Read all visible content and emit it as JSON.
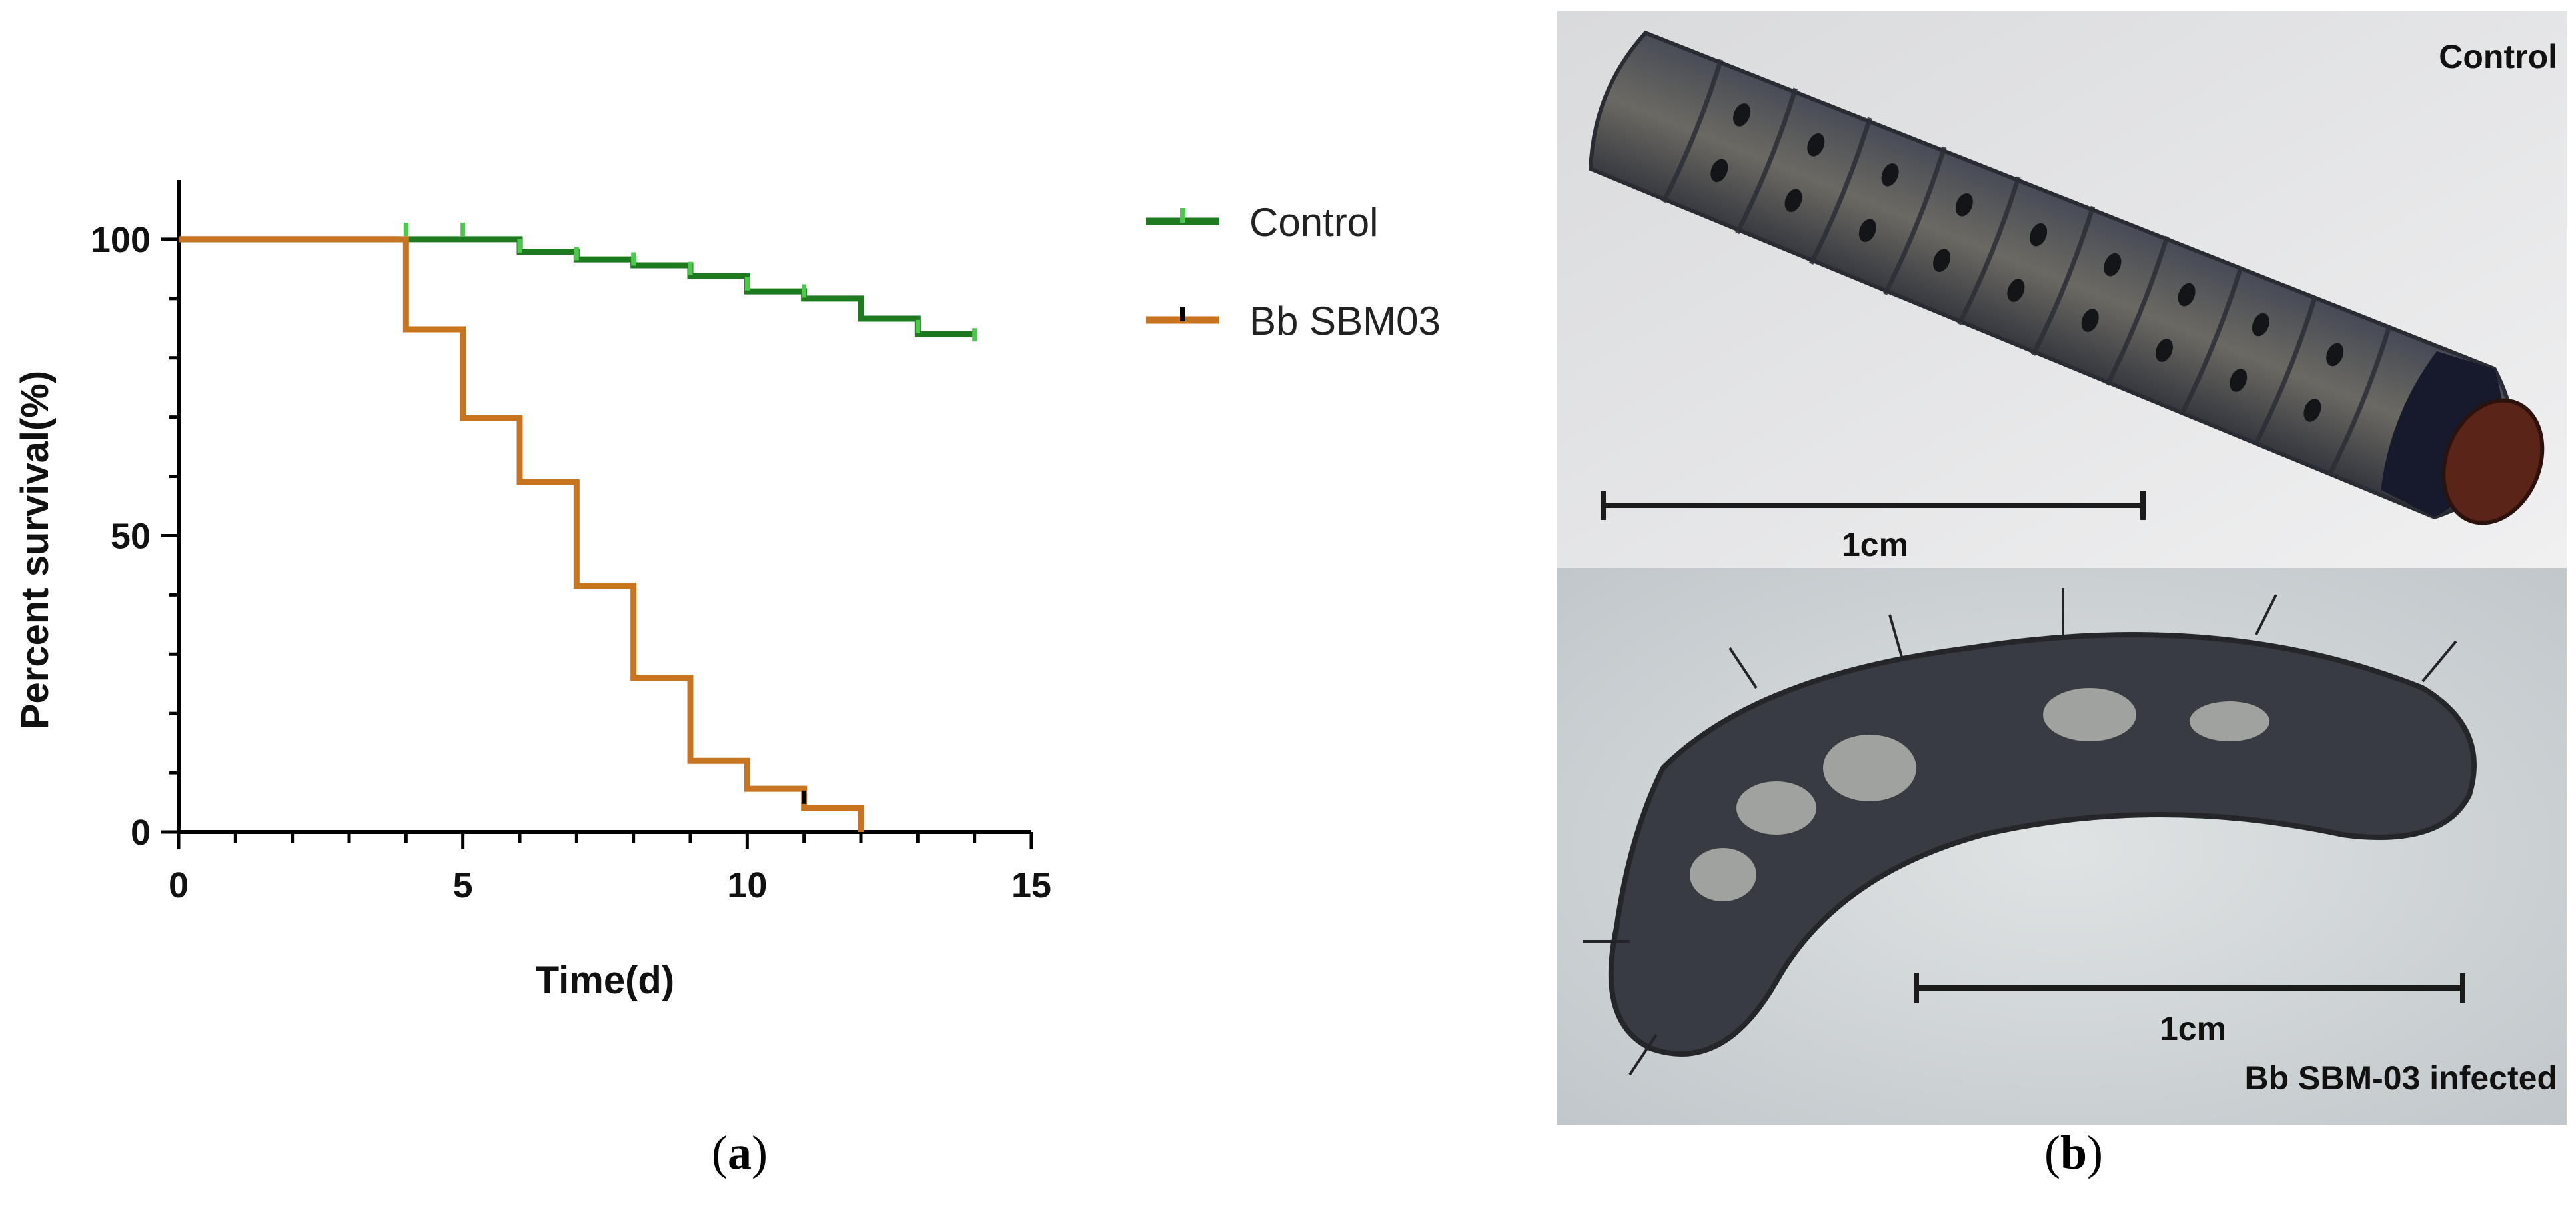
{
  "chart_data": {
    "type": "line",
    "step": true,
    "xlabel": "Time(d)",
    "ylabel": "Percent survival(%)",
    "xlim": [
      0,
      15
    ],
    "ylim": [
      0,
      110
    ],
    "xticks": [
      "0",
      "5",
      "10",
      "15"
    ],
    "yticks": [
      "0",
      "50",
      "100"
    ],
    "grid": false,
    "legend_position": "right",
    "series": [
      {
        "name": "Control",
        "color": "#1e7a1e",
        "marker_color": "#4cc94c",
        "steps": [
          [
            0,
            100
          ],
          [
            6,
            97.9
          ],
          [
            7,
            96.6
          ],
          [
            8,
            95.6
          ],
          [
            9,
            93.8
          ],
          [
            10,
            91.2
          ],
          [
            11,
            90.0
          ],
          [
            12,
            86.6
          ],
          [
            13,
            84.0
          ],
          [
            14,
            84.0
          ]
        ],
        "censored": [
          [
            4,
            101
          ],
          [
            5,
            101
          ],
          [
            6,
            98.2
          ],
          [
            7,
            96.9
          ],
          [
            8,
            96.0
          ],
          [
            9,
            94.4
          ],
          [
            10,
            91.8
          ],
          [
            11,
            90.6
          ],
          [
            13,
            84.6
          ],
          [
            14,
            83.2
          ]
        ]
      },
      {
        "name": "Bb SBM03",
        "color": "#c8741e",
        "marker_color": "#000000",
        "steps": [
          [
            0,
            100
          ],
          [
            4,
            84.8
          ],
          [
            5,
            69.8
          ],
          [
            6,
            59.0
          ],
          [
            7,
            41.5
          ],
          [
            8,
            26.0
          ],
          [
            9,
            12.0
          ],
          [
            10,
            7.3
          ],
          [
            11,
            4.0
          ],
          [
            12,
            0
          ]
        ],
        "censored": [
          [
            11,
            5.2
          ]
        ]
      }
    ]
  },
  "panel_labels": {
    "a_open": "(",
    "a_letter": "a",
    "a_close": ")",
    "b_open": "(",
    "b_letter": "b",
    "b_close": ")"
  },
  "photos": {
    "top_label": "Control",
    "top_scale_label": "1cm",
    "bottom_label": "Bb SBM-03 infected",
    "bottom_scale_label": "1cm"
  }
}
